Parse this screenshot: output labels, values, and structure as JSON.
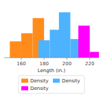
{
  "chart_data": {
    "type": "bar",
    "xlabel": "Length (in.)",
    "series": [
      {
        "name": "Density",
        "color": "#ff8c1a",
        "x": [
          150,
          160,
          170
        ],
        "values": [
          0.028,
          0.042,
          0.068
        ]
      },
      {
        "name": "Density",
        "color": "#4db3ff",
        "x": [
          175,
          185,
          193,
          203
        ],
        "values": [
          0.03,
          0.048,
          0.078,
          0.032
        ]
      },
      {
        "name": "Density",
        "color": "#ff00ff",
        "x": [
          210,
          220
        ],
        "values": [
          0.055,
          0.01
        ]
      }
    ],
    "bar_width": 10,
    "xlim": [
      145,
      228
    ],
    "ylim": [
      0,
      0.092
    ],
    "xticks": [
      160,
      180,
      200,
      220
    ],
    "grid": false,
    "legend": "bottom",
    "tick_labels": "x"
  }
}
